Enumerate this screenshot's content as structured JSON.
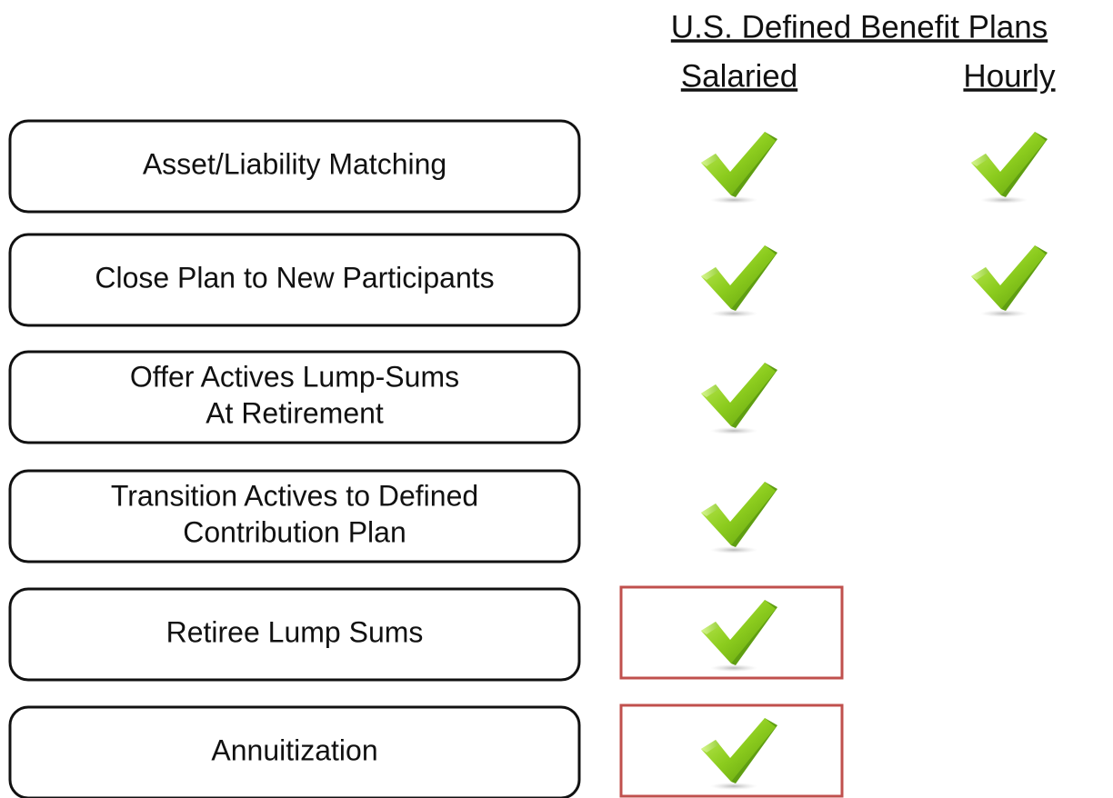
{
  "header": {
    "title": "U.S. Defined Benefit Plans",
    "columns": [
      "Salaried",
      "Hourly"
    ]
  },
  "rows": [
    {
      "label": [
        "Asset/Liability Matching"
      ],
      "checks": [
        true,
        true
      ],
      "highlight": false
    },
    {
      "label": [
        "Close Plan to New Participants"
      ],
      "checks": [
        true,
        true
      ],
      "highlight": false
    },
    {
      "label": [
        "Offer Actives Lump-Sums",
        "At Retirement"
      ],
      "checks": [
        true,
        false
      ],
      "highlight": false
    },
    {
      "label": [
        "Transition Actives to Defined",
        "Contribution Plan"
      ],
      "checks": [
        true,
        false
      ],
      "highlight": false
    },
    {
      "label": [
        "Retiree Lump Sums"
      ],
      "checks": [
        true,
        false
      ],
      "highlight": true
    },
    {
      "label": [
        "Annuitization"
      ],
      "checks": [
        true,
        false
      ],
      "highlight": true
    }
  ]
}
